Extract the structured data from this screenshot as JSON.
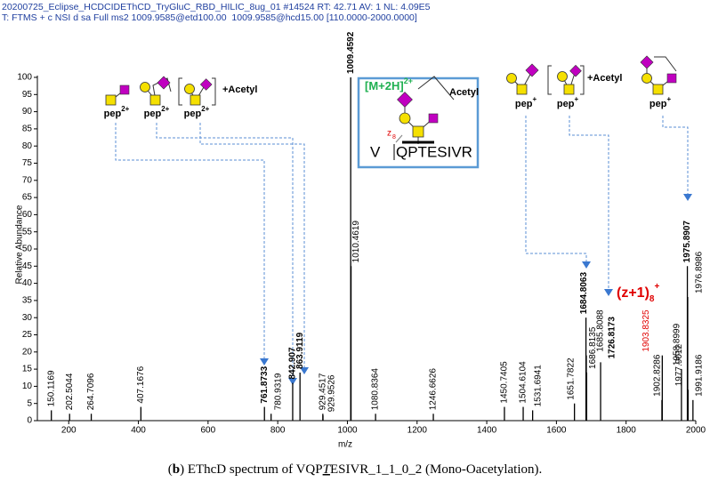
{
  "header": [
    "20200725_Eclipse_HCDCIDEThCD_TryGluC_RBD_HILIC_8ug_01 #14524 RT: 42.71 AV: 1 NL: 4.09E5",
    "T: FTMS + c NSI d sa Full ms2 1009.9585@etd100.00  1009.9585@hcd15.00 [110.0000-2000.0000]"
  ],
  "chart_data": {
    "type": "stem",
    "xlabel": "m/z",
    "ylabel": "Relative Abundance",
    "x": [
      150.1169,
      202.5044,
      264.7096,
      407.1676,
      761.8733,
      780.9319,
      842.907,
      863.9119,
      929.4517,
      929.9526,
      1009.4592,
      1010.4619,
      1080.8364,
      1246.6626,
      1450.7405,
      1504.6104,
      1531.6941,
      1651.7822,
      1684.8063,
      1685.8088,
      1686.8135,
      1726.8173,
      1902.8286,
      1903.8325,
      1958.8999,
      1975.8907,
      1976.8986,
      1977.9012,
      1991.9186
    ],
    "values": [
      3,
      2,
      2,
      4,
      4,
      2,
      11,
      14,
      2,
      1.5,
      100,
      45,
      2,
      2,
      4,
      4,
      3,
      5,
      30,
      19,
      14,
      17,
      6,
      19,
      15,
      45,
      36,
      9,
      6
    ],
    "label_bold": [
      false,
      false,
      false,
      false,
      true,
      false,
      true,
      true,
      false,
      false,
      true,
      false,
      false,
      false,
      false,
      false,
      false,
      false,
      true,
      false,
      false,
      true,
      false,
      false,
      false,
      true,
      false,
      false,
      false
    ],
    "label_colors": [
      "#000000",
      "#000000",
      "#000000",
      "#000000",
      "#000000",
      "#000000",
      "#000000",
      "#000000",
      "#000000",
      "#000000",
      "#000000",
      "#000000",
      "#000000",
      "#000000",
      "#000000",
      "#000000",
      "#000000",
      "#000000",
      "#000000",
      "#000000",
      "#000000",
      "#000000",
      "#000000",
      "#e00000",
      "#000000",
      "#000000",
      "#000000",
      "#000000",
      "#000000"
    ],
    "color": "#000000",
    "xlim": [
      110,
      2000
    ],
    "xticks": [
      200,
      400,
      600,
      800,
      1000,
      1200,
      1400,
      1600,
      1800,
      2000
    ],
    "ylim": [
      0,
      100
    ],
    "yticks": [
      0,
      5,
      10,
      15,
      20,
      25,
      30,
      35,
      40,
      45,
      50,
      55,
      60,
      65,
      70,
      75,
      80,
      85,
      90,
      95,
      100
    ],
    "annotations": {
      "precursor": {
        "text": "[M+2H]",
        "charge": "2+"
      },
      "fragment": {
        "text": "(z+1)",
        "sub": "8",
        "sup": "+"
      },
      "glycan_labels": [
        {
          "text": "pep",
          "charge": "2+"
        },
        {
          "text": "pep",
          "charge": "2+"
        },
        {
          "text": "pep",
          "charge": "2+"
        },
        {
          "text": "pep",
          "charge": "+"
        },
        {
          "text": "pep",
          "charge": "+"
        },
        {
          "text": "pep",
          "charge": "+"
        }
      ],
      "acetyl_labels": [
        "+Acetyl",
        "+Acetyl"
      ],
      "inset": {
        "acetyl": "Acetyl",
        "residue": "V",
        "peptide": "QPTESIVR",
        "ion": "z",
        "ion_index": "8"
      }
    }
  },
  "caption": [
    "(",
    "b",
    ") EThcD spectrum of VQP",
    "T",
    "ESIVR_1_1_0_2 (Mono-Oacetylation)."
  ]
}
